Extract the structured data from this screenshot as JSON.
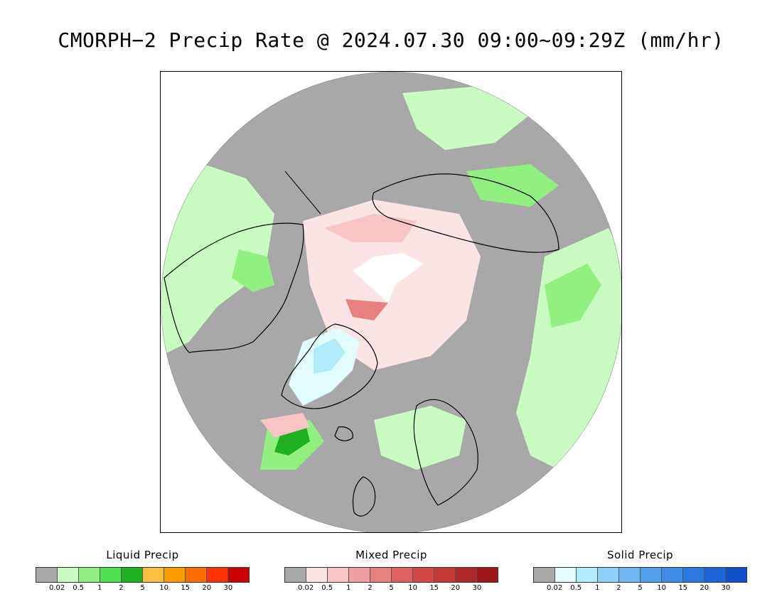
{
  "title": "CMORPH−2 Precip Rate @ 2024.07.30 09:00~09:29Z (mm/hr)",
  "map": {
    "projection": "north-polar-stereographic",
    "no_rain_color": "#a8a8a8",
    "pole_gap_color": "#ffffff"
  },
  "legends": [
    {
      "title": "Liquid Precip",
      "colors": [
        "#a8a8a8",
        "#c8fcc0",
        "#90f080",
        "#50e050",
        "#20b020",
        "#fcc040",
        "#fc9c00",
        "#fc6c00",
        "#fc3000",
        "#c80000"
      ],
      "ticks": [
        "0.02",
        "0.5",
        "1",
        "2",
        "5",
        "10",
        "15",
        "20",
        "30"
      ]
    },
    {
      "title": "Mixed Precip",
      "colors": [
        "#a8a8a8",
        "#fce4e4",
        "#f8c4c4",
        "#f0a0a0",
        "#e88080",
        "#e06060",
        "#d44848",
        "#c43838",
        "#b02828",
        "#a01818"
      ],
      "ticks": [
        "0.02",
        "0.5",
        "1",
        "2",
        "5",
        "10",
        "15",
        "20",
        "30"
      ]
    },
    {
      "title": "Solid Precip",
      "colors": [
        "#a8a8a8",
        "#e0fcfc",
        "#b0ecfc",
        "#90d0f8",
        "#70b8f4",
        "#50a0ec",
        "#3c8ce8",
        "#2878e0",
        "#1c64d8",
        "#1050c8"
      ],
      "ticks": [
        "0.02",
        "0.5",
        "1",
        "2",
        "5",
        "10",
        "15",
        "20",
        "30"
      ]
    }
  ]
}
